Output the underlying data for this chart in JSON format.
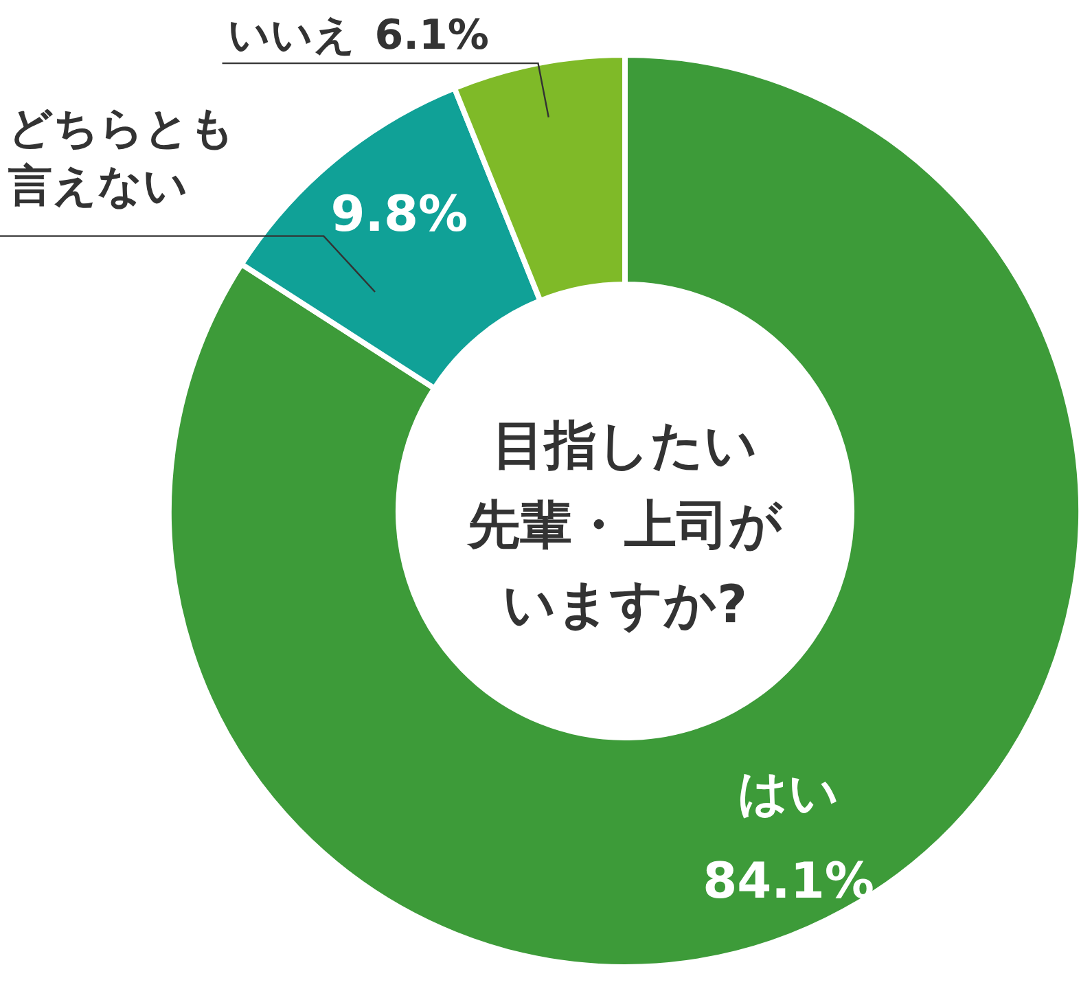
{
  "chart_data": {
    "type": "donut",
    "title": "目指したい先輩・上司がいますか?",
    "categories": [
      "はい",
      "どちらとも言えない",
      "いいえ"
    ],
    "values": [
      84.1,
      9.8,
      6.1
    ],
    "value_labels": [
      "84.1%",
      "9.8%",
      "6.1%"
    ],
    "colors": [
      "#3d9b39",
      "#10a197",
      "#7fba28"
    ]
  }
}
